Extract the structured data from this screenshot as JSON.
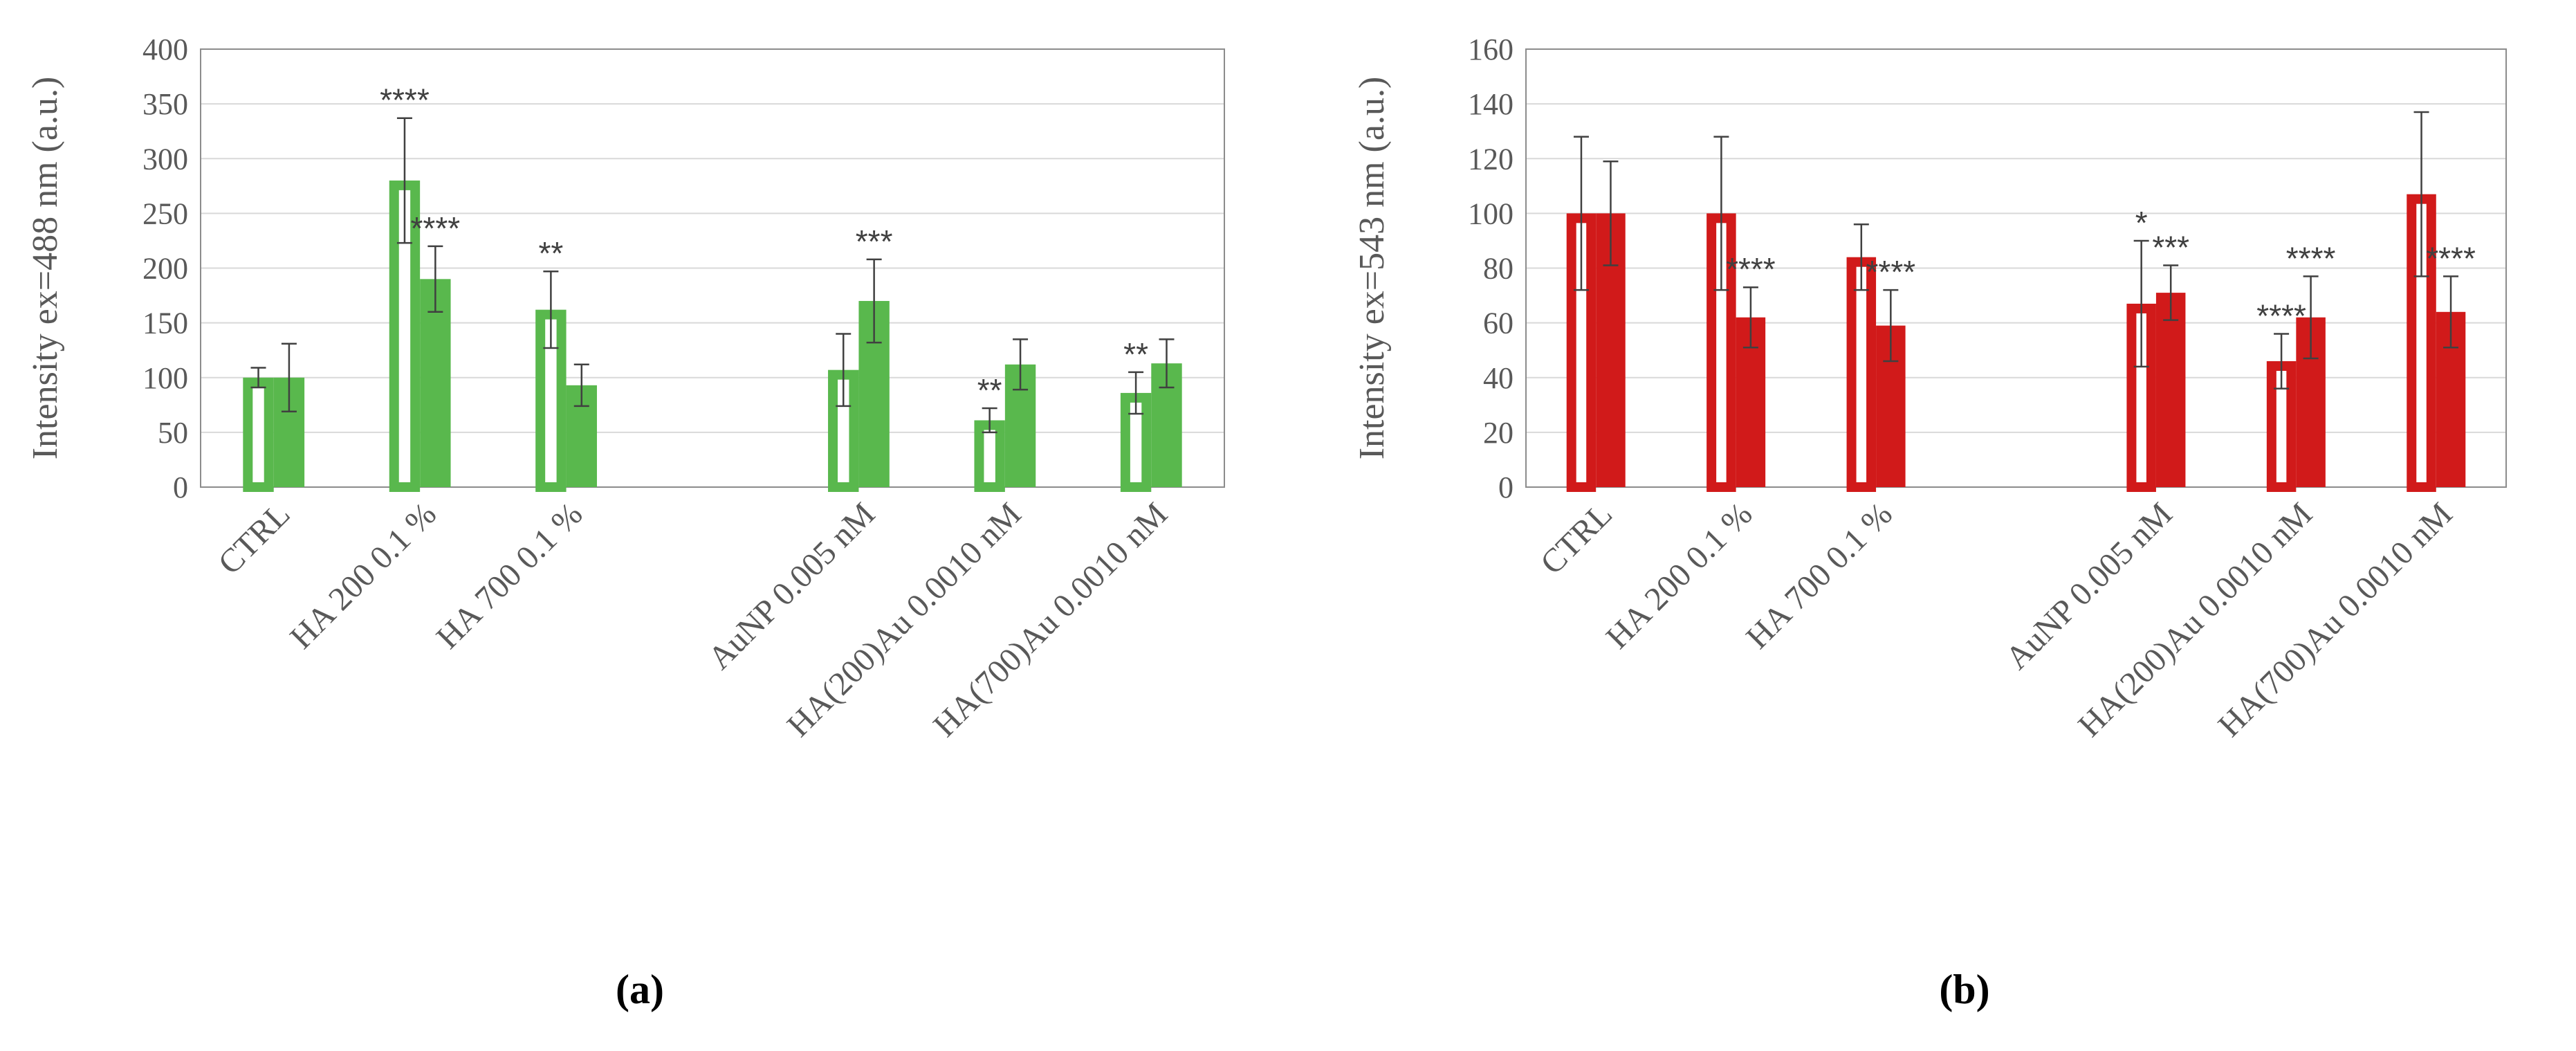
{
  "chart_data": [
    {
      "type": "bar",
      "panel_label": "(a)",
      "ylabel": "Intensity ex=488 nm (a.u.)",
      "ylim": [
        0,
        400
      ],
      "yticks": [
        0,
        50,
        100,
        150,
        200,
        250,
        300,
        350,
        400
      ],
      "grid": true,
      "color": "#59b84d",
      "categories": [
        "CTRL",
        "HA 200 0.1 %",
        "HA 700 0.1 %",
        "",
        "AuNP 0.005 nM",
        "HA(200)Au 0.0010 nM",
        "HA(700)Au 0.0010 nM"
      ],
      "series": [
        {
          "style": "hollow",
          "values": [
            100,
            280,
            162,
            null,
            107,
            61,
            86
          ],
          "errors": [
            9,
            57,
            35,
            null,
            33,
            11,
            19
          ],
          "significance": [
            "",
            "****",
            "**",
            "",
            "",
            "**",
            "**"
          ]
        },
        {
          "style": "solid",
          "values": [
            100,
            190,
            93,
            null,
            170,
            112,
            113
          ],
          "errors": [
            31,
            30,
            19,
            null,
            38,
            23,
            22
          ],
          "significance": [
            "",
            "****",
            "",
            "",
            "***",
            "",
            ""
          ]
        }
      ]
    },
    {
      "type": "bar",
      "panel_label": "(b)",
      "ylabel": "Intensity ex=543 nm (a.u.)",
      "ylim": [
        0,
        160
      ],
      "yticks": [
        0,
        20,
        40,
        60,
        80,
        100,
        120,
        140,
        160
      ],
      "grid": true,
      "color": "#d11a1a",
      "categories": [
        "CTRL",
        "HA 200 0.1 %",
        "HA 700 0.1 %",
        "",
        "AuNP 0.005 nM",
        "HA(200)Au 0.0010 nM",
        "HA(700)Au 0.0010 nM"
      ],
      "series": [
        {
          "style": "hollow",
          "values": [
            100,
            100,
            84,
            null,
            67,
            46,
            107
          ],
          "errors": [
            28,
            28,
            12,
            null,
            23,
            10,
            30
          ],
          "significance": [
            "",
            "",
            "",
            "",
            "*",
            "****",
            ""
          ]
        },
        {
          "style": "solid",
          "values": [
            100,
            62,
            59,
            null,
            71,
            62,
            64
          ],
          "errors": [
            19,
            11,
            13,
            null,
            10,
            15,
            13
          ],
          "significance": [
            "",
            "****",
            "****",
            "",
            "***",
            "****",
            "****"
          ]
        }
      ]
    }
  ]
}
